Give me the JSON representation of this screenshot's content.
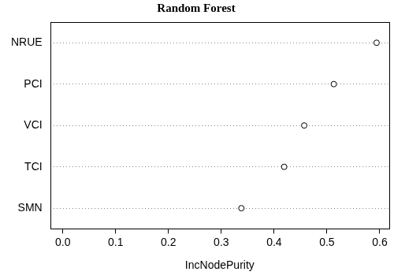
{
  "chart_data": {
    "type": "dot",
    "title": "Random Forest",
    "x_label": "IncNodePurity",
    "categories": [
      "NRUE",
      "PCI",
      "VCI",
      "TCI",
      "SMN"
    ],
    "values": [
      0.594,
      0.513,
      0.457,
      0.419,
      0.338
    ],
    "color": "#000000",
    "marker": "open_circle",
    "orientation": "horizontal",
    "xlim": [
      -0.024,
      0.618
    ],
    "xticks": [
      {
        "value": 0,
        "label": "0.0"
      },
      {
        "value": 0.1,
        "label": "0.1"
      },
      {
        "value": 0.2,
        "label": "0.2"
      },
      {
        "value": 0.3,
        "label": "0.3"
      },
      {
        "value": 0.4,
        "label": "0.4"
      },
      {
        "value": 0.5,
        "label": "0.5"
      },
      {
        "value": 0.6,
        "label": "0.6"
      }
    ],
    "grid": true
  }
}
